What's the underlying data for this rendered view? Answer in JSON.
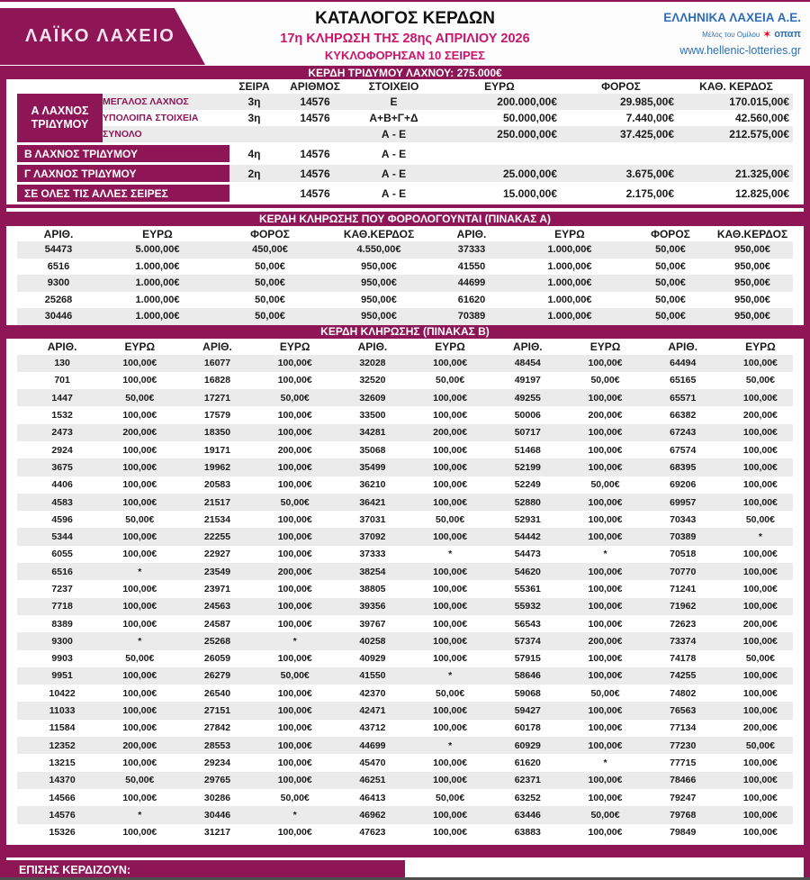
{
  "colors": {
    "magenta": "#8e1556",
    "crimson": "#c9156b",
    "blue": "#2e6eb6",
    "row_gray": "#ebebeb"
  },
  "header": {
    "logo": "ΛΑΪΚΟ ΛΑΧΕΙΟ",
    "title": "ΚΑΤΑΛΟΓΟΣ ΚΕΡΔΩΝ",
    "subtitle1": "17η ΚΛΗΡΩΣΗ ΤΗΣ 28ης ΑΠΡΙΛΙΟΥ 2026",
    "subtitle2": "ΚΥΚΛΟΦΟΡΗΣΑΝ 10 ΣΕΙΡΕΣ",
    "company": "ΕΛΛΗΝΙΚΑ ΛΑΧΕΙΑ Α.Ε.",
    "member": "Μέλος του Ομίλου",
    "opap": "οπαπ",
    "website": "www.hellenic-lotteries.gr"
  },
  "tridymos": {
    "bar_title": "ΚΕΡΔΗ ΤΡΙΔΥΜΟΥ ΛΑΧΝΟΥ: 275.000€",
    "columns": [
      "ΣΕΙΡΑ",
      "ΑΡΙΘΜΟΣ",
      "ΣΤΟΙΧΕΙΟ",
      "ΕΥΡΩ",
      "ΦΟΡΟΣ",
      "ΚΑΘ. ΚΕΡΔΟΣ"
    ],
    "a_label_line1": "Α ΛΑΧΝΟΣ",
    "a_label_line2": "ΤΡΙΔΥΜΟΥ",
    "a_rows": [
      {
        "sub": "ΜΕΓΑΛΟΣ ΛΑΧΝΟΣ",
        "seira": "3η",
        "num": "14576",
        "stoixeio": "Ε",
        "euro": "200.000,00€",
        "tax": "29.985,00€",
        "net": "170.015,00€"
      },
      {
        "sub": "ΥΠΟΛΟΙΠΑ ΣΤΟΙΧΕΙΑ",
        "seira": "3η",
        "num": "14576",
        "stoixeio": "Α+Β+Γ+Δ",
        "euro": "50.000,00€",
        "tax": "7.440,00€",
        "net": "42.560,00€"
      },
      {
        "sub": "ΣΥΝΟΛΟ",
        "seira": "",
        "num": "",
        "stoixeio": "Α - Ε",
        "euro": "250.000,00€",
        "tax": "37.425,00€",
        "net": "212.575,00€"
      }
    ],
    "other_rows": [
      {
        "label": "Β ΛΑΧΝΟΣ ΤΡΙΔΥΜΟΥ",
        "seira": "4η",
        "num": "14576",
        "stoixeio": "Α - Ε",
        "euro": "",
        "tax": "",
        "net": ""
      },
      {
        "label": "Γ ΛΑΧΝΟΣ ΤΡΙΔΥΜΟΥ",
        "seira": "2η",
        "num": "14576",
        "stoixeio": "Α - Ε",
        "euro": "25.000,00€",
        "tax": "3.675,00€",
        "net": "21.325,00€"
      },
      {
        "label": "ΣΕ ΟΛΕΣ ΤΙΣ ΑΛΛΕΣ ΣΕΙΡΕΣ",
        "seira": "",
        "num": "14576",
        "stoixeio": "Α - Ε",
        "euro": "15.000,00€",
        "tax": "2.175,00€",
        "net": "12.825,00€"
      }
    ]
  },
  "tableA": {
    "title": "ΚΕΡΔΗ ΚΛΗΡΩΣΗΣ ΠΟΥ ΦΟΡΟΛΟΓΟΥΝΤΑΙ (ΠΙΝΑΚΑΣ Α)",
    "columns": [
      "ΑΡΙΘ.",
      "ΕΥΡΩ",
      "ΦΟΡΟΣ",
      "ΚΑΘ.ΚΕΡΔΟΣ",
      "ΑΡΙΘ.",
      "ΕΥΡΩ",
      "ΦΟΡΟΣ",
      "ΚΑΘ.ΚΕΡΔΟΣ"
    ],
    "rows": [
      [
        "54473",
        "5.000,00€",
        "450,00€",
        "4.550,00€",
        "37333",
        "1.000,00€",
        "50,00€",
        "950,00€"
      ],
      [
        "6516",
        "1.000,00€",
        "50,00€",
        "950,00€",
        "41550",
        "1.000,00€",
        "50,00€",
        "950,00€"
      ],
      [
        "9300",
        "1.000,00€",
        "50,00€",
        "950,00€",
        "44699",
        "1.000,00€",
        "50,00€",
        "950,00€"
      ],
      [
        "25268",
        "1.000,00€",
        "50,00€",
        "950,00€",
        "61620",
        "1.000,00€",
        "50,00€",
        "950,00€"
      ],
      [
        "30446",
        "1.000,00€",
        "50,00€",
        "950,00€",
        "70389",
        "1.000,00€",
        "50,00€",
        "950,00€"
      ]
    ]
  },
  "tableB": {
    "title": "ΚΕΡΔΗ ΚΛΗΡΩΣΗΣ (ΠΙΝΑΚΑΣ Β)",
    "columns": [
      "ΑΡΙΘ.",
      "ΕΥΡΩ"
    ],
    "rows": [
      [
        "130",
        "100,00€",
        "16077",
        "100,00€",
        "32028",
        "100,00€",
        "48454",
        "100,00€",
        "64494",
        "100,00€"
      ],
      [
        "701",
        "100,00€",
        "16828",
        "100,00€",
        "32520",
        "50,00€",
        "49197",
        "50,00€",
        "65165",
        "50,00€"
      ],
      [
        "1447",
        "50,00€",
        "17271",
        "50,00€",
        "32609",
        "100,00€",
        "49255",
        "100,00€",
        "65571",
        "100,00€"
      ],
      [
        "1532",
        "100,00€",
        "17579",
        "100,00€",
        "33500",
        "100,00€",
        "50006",
        "200,00€",
        "66382",
        "200,00€"
      ],
      [
        "2473",
        "200,00€",
        "18350",
        "100,00€",
        "34281",
        "200,00€",
        "50717",
        "100,00€",
        "67243",
        "100,00€"
      ],
      [
        "2924",
        "100,00€",
        "19171",
        "200,00€",
        "35068",
        "100,00€",
        "51468",
        "100,00€",
        "67574",
        "100,00€"
      ],
      [
        "3675",
        "100,00€",
        "19962",
        "100,00€",
        "35499",
        "100,00€",
        "52199",
        "100,00€",
        "68395",
        "100,00€"
      ],
      [
        "4406",
        "100,00€",
        "20583",
        "100,00€",
        "36210",
        "100,00€",
        "52249",
        "50,00€",
        "69206",
        "100,00€"
      ],
      [
        "4583",
        "100,00€",
        "21517",
        "50,00€",
        "36421",
        "100,00€",
        "52880",
        "100,00€",
        "69957",
        "100,00€"
      ],
      [
        "4596",
        "50,00€",
        "21534",
        "100,00€",
        "37031",
        "50,00€",
        "52931",
        "100,00€",
        "70343",
        "50,00€"
      ],
      [
        "5344",
        "100,00€",
        "22255",
        "100,00€",
        "37092",
        "100,00€",
        "54442",
        "100,00€",
        "70389",
        "*"
      ],
      [
        "6055",
        "100,00€",
        "22927",
        "100,00€",
        "37333",
        "*",
        "54473",
        "*",
        "70518",
        "100,00€"
      ],
      [
        "6516",
        "*",
        "23549",
        "200,00€",
        "38254",
        "100,00€",
        "54620",
        "100,00€",
        "70770",
        "100,00€"
      ],
      [
        "7237",
        "100,00€",
        "23971",
        "100,00€",
        "38805",
        "100,00€",
        "55361",
        "100,00€",
        "71241",
        "100,00€"
      ],
      [
        "7718",
        "100,00€",
        "24563",
        "100,00€",
        "39356",
        "100,00€",
        "55932",
        "100,00€",
        "71962",
        "100,00€"
      ],
      [
        "8389",
        "100,00€",
        "24587",
        "100,00€",
        "39767",
        "100,00€",
        "56543",
        "100,00€",
        "72623",
        "200,00€"
      ],
      [
        "9300",
        "*",
        "25268",
        "*",
        "40258",
        "100,00€",
        "57374",
        "200,00€",
        "73374",
        "100,00€"
      ],
      [
        "9903",
        "50,00€",
        "26059",
        "100,00€",
        "40929",
        "100,00€",
        "57915",
        "100,00€",
        "74178",
        "50,00€"
      ],
      [
        "9951",
        "100,00€",
        "26279",
        "50,00€",
        "41550",
        "*",
        "58646",
        "100,00€",
        "74255",
        "100,00€"
      ],
      [
        "10422",
        "100,00€",
        "26540",
        "100,00€",
        "42370",
        "50,00€",
        "59068",
        "50,00€",
        "74802",
        "100,00€"
      ],
      [
        "11033",
        "100,00€",
        "27151",
        "100,00€",
        "42471",
        "100,00€",
        "59427",
        "100,00€",
        "76563",
        "100,00€"
      ],
      [
        "11584",
        "100,00€",
        "27842",
        "100,00€",
        "43712",
        "100,00€",
        "60178",
        "100,00€",
        "77134",
        "200,00€"
      ],
      [
        "12352",
        "200,00€",
        "28553",
        "100,00€",
        "44699",
        "*",
        "60929",
        "100,00€",
        "77230",
        "50,00€"
      ],
      [
        "13215",
        "100,00€",
        "29234",
        "100,00€",
        "45470",
        "100,00€",
        "61620",
        "*",
        "77715",
        "100,00€"
      ],
      [
        "14370",
        "50,00€",
        "29765",
        "100,00€",
        "46251",
        "100,00€",
        "62371",
        "100,00€",
        "78466",
        "100,00€"
      ],
      [
        "14566",
        "100,00€",
        "30286",
        "50,00€",
        "46413",
        "50,00€",
        "63252",
        "100,00€",
        "79247",
        "100,00€"
      ],
      [
        "14576",
        "*",
        "30446",
        "*",
        "46962",
        "100,00€",
        "63446",
        "50,00€",
        "79768",
        "100,00€"
      ],
      [
        "15326",
        "100,00€",
        "31217",
        "100,00€",
        "47623",
        "100,00€",
        "63883",
        "100,00€",
        "79849",
        "100,00€"
      ]
    ]
  },
  "footer": {
    "also_win": "ΕΠΙΣΗΣ ΚΕΡΔΙΖΟΥΝ:"
  }
}
